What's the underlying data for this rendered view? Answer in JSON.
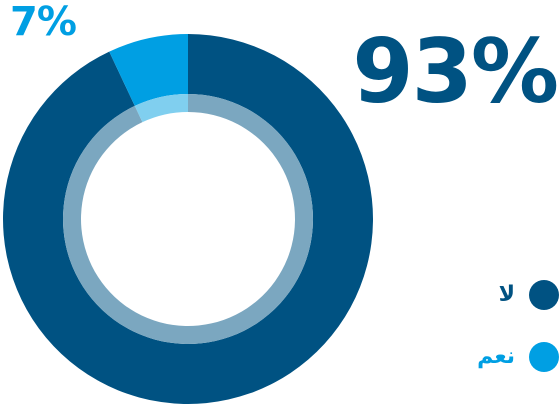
{
  "chart_data": {
    "type": "pie",
    "categories": [
      "لا",
      "نعم"
    ],
    "values": [
      93,
      7
    ],
    "labels": [
      "93%",
      "7%"
    ],
    "colors": [
      "#005282",
      "#009fe3"
    ],
    "inner_ring_colors": [
      "#7ba7c0",
      "#80cfef"
    ],
    "legend": [
      {
        "label": "لا",
        "color": "#005282"
      },
      {
        "label": "نعم",
        "color": "#009fe3"
      }
    ],
    "legend_position": "bottom-right"
  }
}
